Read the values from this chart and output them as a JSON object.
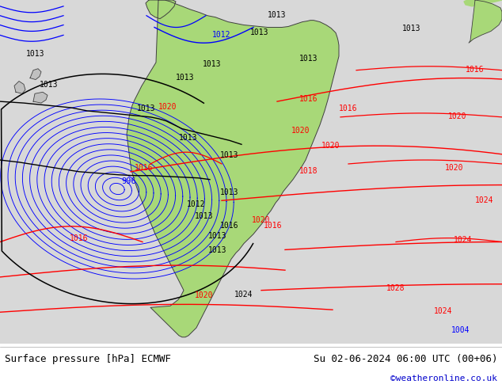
{
  "title_left": "Surface pressure [hPa] ECMWF",
  "title_right": "Su 02-06-2024 06:00 UTC (00+06)",
  "credit": "©weatheronline.co.uk",
  "credit_color": "#0000cc",
  "bg_color": "#ffffff",
  "sea_color": "#d8d8d8",
  "land_color": "#90d870",
  "footer_bg": "#ffffff"
}
